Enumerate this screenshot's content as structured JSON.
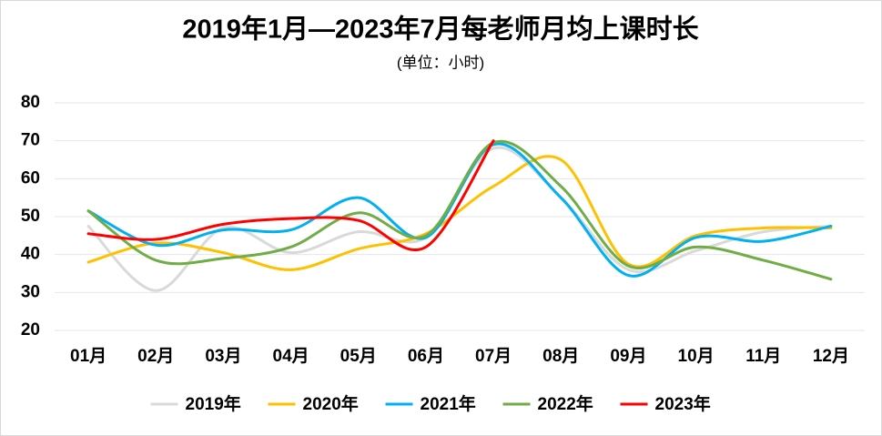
{
  "chart_data": {
    "type": "line",
    "title": "2019年1月—2023年7月每老师月均上课时长",
    "subtitle": "(单位：小时)",
    "categories": [
      "01月",
      "02月",
      "03月",
      "04月",
      "05月",
      "06月",
      "07月",
      "08月",
      "09月",
      "10月",
      "11月",
      "12月"
    ],
    "series": [
      {
        "name": "2019年",
        "color": "#d9d9d9",
        "values": [
          47.5,
          30.5,
          47,
          40.5,
          46,
          44.5,
          68,
          55,
          36,
          41,
          46,
          47.5
        ]
      },
      {
        "name": "2020年",
        "color": "#ffc000",
        "values": [
          38,
          43,
          40.5,
          36,
          41.5,
          45.5,
          58,
          65,
          37.5,
          45,
          47,
          47
        ]
      },
      {
        "name": "2021年",
        "color": "#00b0f0",
        "values": [
          51.5,
          42.5,
          46.5,
          46.5,
          55,
          44.5,
          69,
          55,
          34.5,
          44.5,
          43.5,
          47.5
        ]
      },
      {
        "name": "2022年",
        "color": "#70ad47",
        "values": [
          51.5,
          38.5,
          39,
          42,
          51,
          45,
          69.5,
          58,
          37,
          42,
          38.5,
          33.5
        ]
      },
      {
        "name": "2023年",
        "color": "#ff0000",
        "values": [
          45.5,
          44,
          48,
          49.5,
          49,
          42,
          70,
          null,
          null,
          null,
          null,
          null
        ]
      }
    ],
    "ylim": [
      20,
      80
    ],
    "yticks": [
      20,
      30,
      40,
      50,
      60,
      70,
      80
    ],
    "grid": true,
    "smooth": true,
    "legend": "bottom"
  }
}
